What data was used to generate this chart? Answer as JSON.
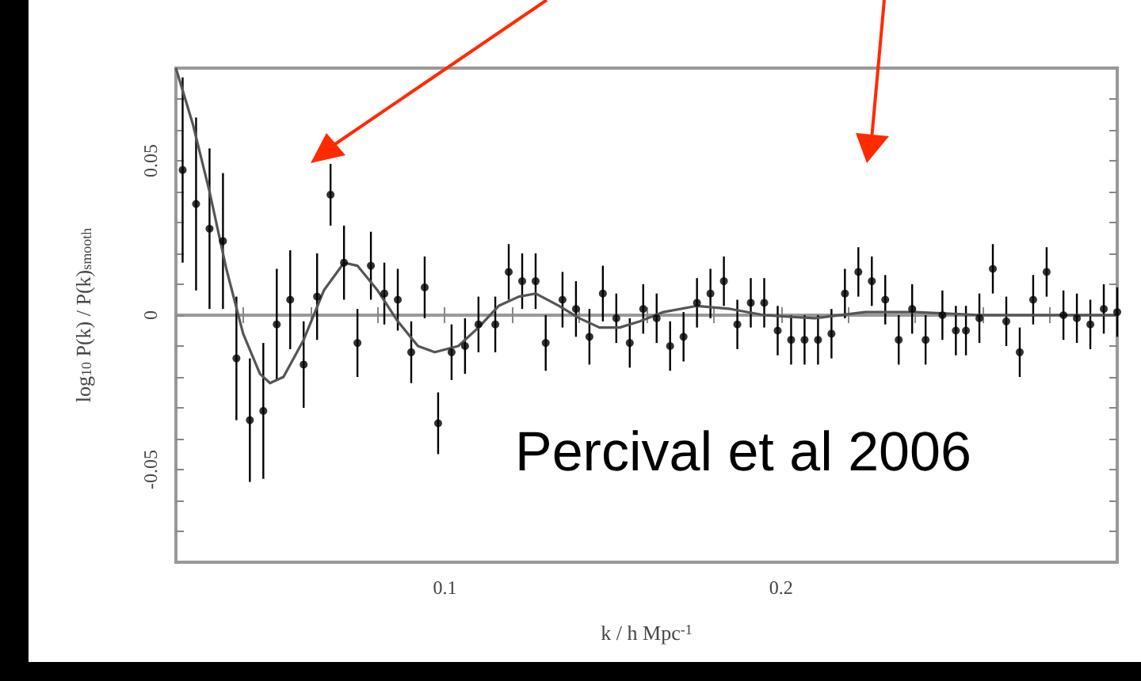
{
  "chart_data": {
    "type": "scatter",
    "xlabel": "k / h Mpc$^{-1}$",
    "ylabel": "log$_{10}$ P(k) / P(k)$_{smooth}$",
    "annotations": [
      "Percival et al 2006"
    ],
    "xlim": [
      0.02,
      0.3
    ],
    "ylim": [
      -0.08,
      0.08
    ],
    "xticks": [
      {
        "value": 0.04,
        "label": null
      },
      {
        "value": 0.06,
        "label": null
      },
      {
        "value": 0.08,
        "label": null
      },
      0.1,
      {
        "value": 0.12,
        "label": null
      },
      {
        "value": 0.14,
        "label": null
      },
      {
        "value": 0.16,
        "label": null
      },
      {
        "value": 0.18,
        "label": null
      },
      0.2,
      {
        "value": 0.22,
        "label": null
      },
      {
        "value": 0.24,
        "label": null
      },
      {
        "value": 0.26,
        "label": null
      },
      {
        "value": 0.28,
        "label": null
      }
    ],
    "yticks": [
      {
        "value": -0.07,
        "label": null
      },
      {
        "value": -0.06,
        "label": null
      },
      -0.05,
      {
        "value": -0.04,
        "label": null
      },
      {
        "value": -0.03,
        "label": null
      },
      {
        "value": -0.02,
        "label": null
      },
      {
        "value": -0.01,
        "label": null
      },
      0,
      {
        "value": 0.01,
        "label": null
      },
      {
        "value": 0.02,
        "label": null
      },
      {
        "value": 0.03,
        "label": null
      },
      {
        "value": 0.04,
        "label": null
      },
      0.05,
      {
        "value": 0.06,
        "label": null
      },
      {
        "value": 0.07,
        "label": null
      }
    ],
    "series": [
      {
        "type": "line",
        "color": "#555555",
        "marker": "none",
        "x": [
          0.02,
          0.025,
          0.03,
          0.035,
          0.04,
          0.045,
          0.048,
          0.052,
          0.058,
          0.064,
          0.07,
          0.074,
          0.08,
          0.086,
          0.092,
          0.097,
          0.104,
          0.11,
          0.116,
          0.122,
          0.127,
          0.134,
          0.14,
          0.146,
          0.152,
          0.158,
          0.165,
          0.175,
          0.185,
          0.195,
          0.21,
          0.225,
          0.24,
          0.26,
          0.28,
          0.3
        ],
        "values": [
          0.08,
          0.062,
          0.04,
          0.015,
          -0.006,
          -0.019,
          -0.022,
          -0.02,
          -0.008,
          0.008,
          0.017,
          0.016,
          0.008,
          -0.002,
          -0.01,
          -0.012,
          -0.01,
          -0.004,
          0.003,
          0.006,
          0.007,
          0.003,
          -0.001,
          -0.004,
          -0.004,
          -0.002,
          0.001,
          0.003,
          0.002,
          0,
          -0.001,
          0.001,
          0.001,
          0,
          0,
          0
        ]
      },
      {
        "color": "#000000",
        "marker": "circle",
        "x": [
          0.022,
          0.026,
          0.03,
          0.034,
          0.038,
          0.042,
          0.046,
          0.05,
          0.054,
          0.058,
          0.062,
          0.066,
          0.07,
          0.074,
          0.078,
          0.082,
          0.086,
          0.09,
          0.094,
          0.098,
          0.102,
          0.106,
          0.11,
          0.115,
          0.119,
          0.123,
          0.127,
          0.13,
          0.135,
          0.139,
          0.143,
          0.147,
          0.151,
          0.155,
          0.159,
          0.163,
          0.167,
          0.171,
          0.175,
          0.179,
          0.183,
          0.187,
          0.191,
          0.195,
          0.199,
          0.203,
          0.207,
          0.211,
          0.215,
          0.219,
          0.223,
          0.227,
          0.231,
          0.235,
          0.239,
          0.243,
          0.248,
          0.252,
          0.255,
          0.259,
          0.263,
          0.267,
          0.271,
          0.275,
          0.279,
          0.284,
          0.288,
          0.292,
          0.296,
          0.3
        ],
        "values": [
          0.047,
          0.036,
          0.028,
          0.024,
          -0.014,
          -0.034,
          -0.031,
          -0.003,
          0.005,
          -0.016,
          0.006,
          0.039,
          0.017,
          -0.009,
          0.016,
          0.007,
          0.005,
          -0.012,
          0.009,
          -0.035,
          -0.012,
          -0.01,
          -0.003,
          -0.003,
          0.014,
          0.011,
          0.011,
          -0.009,
          0.005,
          0.002,
          -0.007,
          0.007,
          -0.001,
          -0.009,
          0.002,
          -0.001,
          -0.01,
          -0.007,
          0.004,
          0.007,
          0.011,
          -0.003,
          0.004,
          0.004,
          -0.005,
          -0.008,
          -0.008,
          -0.008,
          -0.006,
          0.007,
          0.014,
          0.011,
          0.005,
          -0.008,
          0.002,
          -0.008,
          0,
          -0.005,
          -0.005,
          -0.001,
          0.015,
          -0.002,
          -0.012,
          0.005,
          0.014,
          0,
          -0.001,
          -0.003,
          0.002,
          0.001
        ],
        "errors": [
          0.03,
          0.028,
          0.026,
          0.022,
          0.02,
          0.02,
          0.022,
          0.018,
          0.016,
          0.014,
          0.014,
          0.01,
          0.012,
          0.011,
          0.011,
          0.01,
          0.01,
          0.01,
          0.01,
          0.01,
          0.009,
          0.009,
          0.009,
          0.009,
          0.009,
          0.009,
          0.009,
          0.009,
          0.009,
          0.009,
          0.009,
          0.009,
          0.008,
          0.008,
          0.008,
          0.008,
          0.008,
          0.008,
          0.008,
          0.008,
          0.008,
          0.008,
          0.008,
          0.008,
          0.008,
          0.008,
          0.008,
          0.008,
          0.008,
          0.008,
          0.008,
          0.008,
          0.008,
          0.008,
          0.008,
          0.008,
          0.008,
          0.008,
          0.008,
          0.008,
          0.008,
          0.008,
          0.008,
          0.008,
          0.008,
          0.008,
          0.008,
          0.008,
          0.008,
          0.008
        ]
      }
    ]
  }
}
